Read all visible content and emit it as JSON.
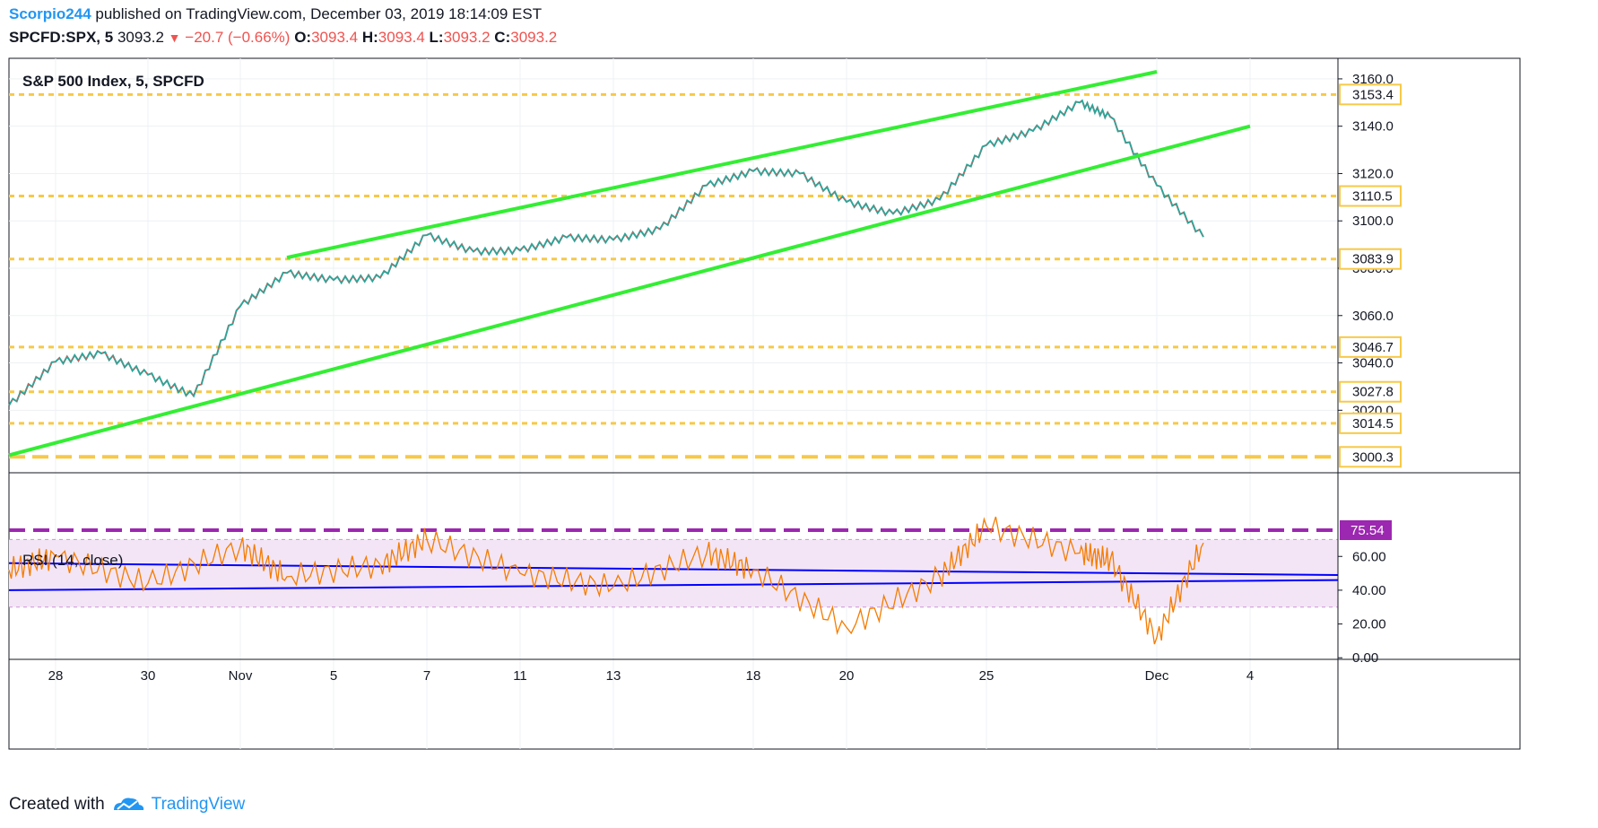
{
  "header": {
    "user": "Scorpio244",
    "published": "published on TradingView.com, December 03, 2019 18:14:09 EST",
    "symbol": "SPCFD:SPX, 5",
    "price": "3093.2",
    "change": "−20.7 (−0.66%)",
    "o_label": "O:",
    "o_val": "3093.4",
    "h_label": "H:",
    "h_val": "3093.4",
    "l_label": "L:",
    "l_val": "3093.2",
    "c_label": "C:",
    "c_val": "3093.2"
  },
  "footer": {
    "created": "Created with",
    "brand": "TradingView"
  },
  "chart_data": [
    {
      "type": "line",
      "title": "S&P 500 Index, 5, SPCFD",
      "x_labels": [
        "28",
        "30",
        "Nov",
        "5",
        "7",
        "11",
        "13",
        "18",
        "20",
        "25",
        "Dec",
        "4"
      ],
      "yticks": [
        3020.0,
        3040.0,
        3060.0,
        3080.0,
        3100.0,
        3120.0,
        3140.0,
        3160.0
      ],
      "ylim": [
        2997,
        3163
      ],
      "colors": {
        "price_up": "#26a69a",
        "price_down": "#ef5350",
        "trend": "#33ee33",
        "level": "#f7c948"
      },
      "series": [
        {
          "x": [
            "Oct 25",
            "Oct 28",
            "Oct 29",
            "Oct 30",
            "Oct 31",
            "Nov 1",
            "Nov 4",
            "Nov 5",
            "Nov 6",
            "Nov 7",
            "Nov 8",
            "Nov 11",
            "Nov 12",
            "Nov 13",
            "Nov 14",
            "Nov 15",
            "Nov 18",
            "Nov 19",
            "Nov 20",
            "Nov 21",
            "Nov 22",
            "Nov 25",
            "Nov 26",
            "Nov 27",
            "Nov 29",
            "Dec 2",
            "Dec 3"
          ],
          "values": [
            3022.0,
            3040.5,
            3044.0,
            3035.0,
            3026.0,
            3064.0,
            3078.0,
            3075.0,
            3076.0,
            3094.0,
            3087.0,
            3087.5,
            3093.0,
            3092.0,
            3096.5,
            3115.0,
            3121.0,
            3120.0,
            3108.0,
            3103.0,
            3109.0,
            3132.0,
            3138.0,
            3150.0,
            3144.0,
            3115.0,
            3093.2
          ]
        }
      ],
      "levels": [
        3153.4,
        3110.5,
        3083.9,
        3046.7,
        3027.8,
        3014.5,
        3000.3
      ],
      "trendlines": [
        {
          "from": {
            "x": "Oct 25",
            "y": 3001.0
          },
          "to": {
            "x": "Dec 4",
            "y": 3140.0
          }
        },
        {
          "from": {
            "x": "Nov 4",
            "y": 3084.5
          },
          "to": {
            "x": "Dec 2",
            "y": 3163.0
          }
        }
      ]
    },
    {
      "type": "line",
      "title": "RSI (14, close)",
      "yticks": [
        0.0,
        20.0,
        40.0,
        60.0
      ],
      "ylim": [
        -2,
        92
      ],
      "band": [
        30,
        70
      ],
      "highlight_value": 75.54,
      "colors": {
        "rsi": "#f57c00",
        "band": "#ce93d8",
        "highlight": "#9c27b0",
        "trend": "#0000ff"
      },
      "series": [
        {
          "x": [
            "Oct 25",
            "Oct 28",
            "Oct 30",
            "Nov 1",
            "Nov 4",
            "Nov 6",
            "Nov 7",
            "Nov 11",
            "Nov 13",
            "Nov 15",
            "Nov 18",
            "Nov 20",
            "Nov 22",
            "Nov 25",
            "Nov 27",
            "Nov 29",
            "Dec 2",
            "Dec 3"
          ],
          "values": [
            52,
            60,
            44,
            66,
            48,
            55,
            70,
            50,
            42,
            62,
            52,
            18,
            48,
            78,
            62,
            58,
            12,
            68
          ]
        }
      ],
      "trendlines": [
        {
          "from": {
            "x": "Oct 25",
            "y": 56.0
          },
          "to": {
            "x": "Dec 4",
            "y": 49.0
          }
        },
        {
          "from": {
            "x": "Oct 25",
            "y": 40.0
          },
          "to": {
            "x": "Dec 4",
            "y": 46.0
          }
        }
      ]
    }
  ]
}
